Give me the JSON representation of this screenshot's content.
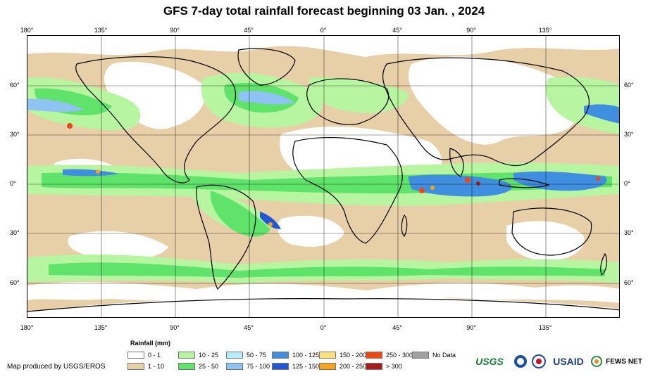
{
  "title": "GFS 7-day total rainfall forecast beginning 03 Jan. , 2024",
  "axes": {
    "lon_labels": [
      "180°",
      "135°",
      "90°",
      "45°",
      "0°",
      "45°",
      "90°",
      "135°"
    ],
    "lat_labels": [
      "60°",
      "30°",
      "0°",
      "30°",
      "60°"
    ]
  },
  "legend": {
    "title": "Rainfall (mm)",
    "items": [
      {
        "label": "0 - 1",
        "color": "#ffffff"
      },
      {
        "label": "1 - 10",
        "color": "#e7cfa8"
      },
      {
        "label": "10 - 25",
        "color": "#b8f5a0"
      },
      {
        "label": "25 - 50",
        "color": "#5fe36a"
      },
      {
        "label": "50 - 75",
        "color": "#b5eefa"
      },
      {
        "label": "75 - 100",
        "color": "#8ec3f3"
      },
      {
        "label": "100 - 125",
        "color": "#3f8ee0"
      },
      {
        "label": "125 - 150",
        "color": "#2358d4"
      },
      {
        "label": "150 - 200",
        "color": "#ffe17a"
      },
      {
        "label": "200 - 250",
        "color": "#f7a41e"
      },
      {
        "label": "250 - 300",
        "color": "#f04610"
      },
      {
        "label": "> 300",
        "color": "#a61c17"
      },
      {
        "label": "No Data",
        "color": "#a0a0a0"
      }
    ]
  },
  "producer": "Map produced by USGS/EROS",
  "logos": {
    "usgs": "USGS",
    "usaid": "USAID",
    "fews": "FEWS NET"
  },
  "icons": [
    "noaa-logo-icon",
    "nasa-logo-icon",
    "fews-net-logo-icon"
  ]
}
